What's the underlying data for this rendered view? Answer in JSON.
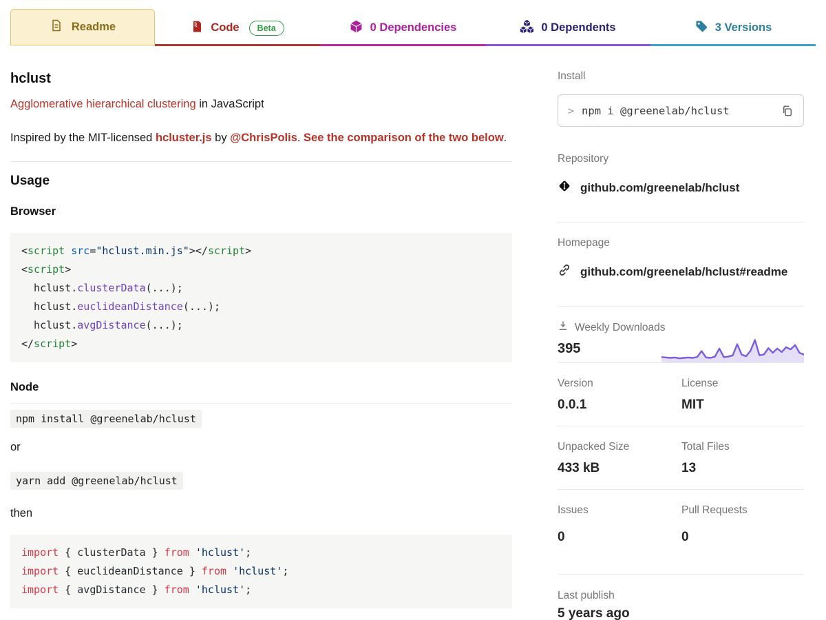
{
  "header": {
    "tabs": [
      {
        "label": "Readme"
      },
      {
        "label": "Code",
        "badge": "Beta"
      },
      {
        "label": "0 Dependencies"
      },
      {
        "label": "0 Dependents"
      },
      {
        "label": "3 Versions"
      }
    ],
    "underline_colors": [
      "#a93a33",
      "#bf2a9f",
      "#8a55d6",
      "#3fa3c9"
    ]
  },
  "readme": {
    "title": "hclust",
    "subtitle": [
      {
        "text": "Agglomerative hierarchical clustering",
        "style": "link"
      },
      {
        "text": " in JavaScript",
        "style": "plain"
      }
    ],
    "intro": [
      {
        "text": "Inspired by the MIT-licensed ",
        "style": "plain"
      },
      {
        "text": "hcluster.js",
        "style": "link-bold"
      },
      {
        "text": " by ",
        "style": "plain"
      },
      {
        "text": "@ChrisPolis",
        "style": "link-bold"
      },
      {
        "text": ". ",
        "style": "plain"
      },
      {
        "text": "See the comparison of the two below",
        "style": "link-bold"
      },
      {
        "text": ".",
        "style": "plain"
      }
    ],
    "usage_heading": "Usage",
    "browser_heading": "Browser",
    "node_heading": "Node",
    "or_text": "or",
    "then_text": "then",
    "npm_install_code": "npm install @greenelab/hclust",
    "yarn_add_code": "yarn add @greenelab/hclust",
    "browser_code": [
      [
        [
          "p",
          "<"
        ],
        [
          "t",
          "script"
        ],
        [
          "p",
          " "
        ],
        [
          "a",
          "src"
        ],
        [
          "p",
          "="
        ],
        [
          "s",
          "\"hclust.min.js\""
        ],
        [
          "p",
          "></"
        ],
        [
          "t",
          "script"
        ],
        [
          "p",
          ">"
        ]
      ],
      [
        [
          "p",
          "<"
        ],
        [
          "t",
          "script"
        ],
        [
          "p",
          ">"
        ]
      ],
      [
        [
          "p",
          "  hclust."
        ],
        [
          "f",
          "clusterData"
        ],
        [
          "p",
          "(...);"
        ]
      ],
      [
        [
          "p",
          "  hclust."
        ],
        [
          "f",
          "euclideanDistance"
        ],
        [
          "p",
          "(...);"
        ]
      ],
      [
        [
          "p",
          "  hclust."
        ],
        [
          "f",
          "avgDistance"
        ],
        [
          "p",
          "(...);"
        ]
      ],
      [
        [
          "p",
          "</"
        ],
        [
          "t",
          "script"
        ],
        [
          "p",
          ">"
        ]
      ]
    ],
    "import_code": [
      [
        [
          "k",
          "import"
        ],
        [
          "p",
          " { clusterData } "
        ],
        [
          "k",
          "from"
        ],
        [
          "p",
          " "
        ],
        [
          "s",
          "'hclust'"
        ],
        [
          "p",
          ";"
        ]
      ],
      [
        [
          "k",
          "import"
        ],
        [
          "p",
          " { euclideanDistance } "
        ],
        [
          "k",
          "from"
        ],
        [
          "p",
          " "
        ],
        [
          "s",
          "'hclust'"
        ],
        [
          "p",
          ";"
        ]
      ],
      [
        [
          "k",
          "import"
        ],
        [
          "p",
          " { avgDistance } "
        ],
        [
          "k",
          "from"
        ],
        [
          "p",
          " "
        ],
        [
          "s",
          "'hclust'"
        ],
        [
          "p",
          ";"
        ]
      ]
    ]
  },
  "sidebar": {
    "install_label": "Install",
    "install_prompt": ">",
    "install_command": "npm i @greenelab/hclust",
    "repository_label": "Repository",
    "repository_link": "github.com/greenelab/hclust",
    "homepage_label": "Homepage",
    "homepage_link": "github.com/greenelab/hclust#readme",
    "downloads_label": "Weekly Downloads",
    "downloads_value": "395",
    "stats": [
      {
        "label": "Version",
        "value": "0.0.1"
      },
      {
        "label": "License",
        "value": "MIT"
      },
      {
        "label": "Unpacked Size",
        "value": "433 kB"
      },
      {
        "label": "Total Files",
        "value": "13"
      },
      {
        "label": "Issues",
        "value": "0"
      },
      {
        "label": "Pull Requests",
        "value": "0"
      }
    ],
    "last_publish_label": "Last publish",
    "last_publish_value": "5 years ago"
  },
  "chart_data": {
    "type": "area",
    "title": "Weekly Downloads sparkline",
    "current_value": 395,
    "note": "unlabeled sparkline; values are relative estimates read from the line shape",
    "values": [
      10,
      9,
      8,
      9,
      7,
      8,
      9,
      8,
      10,
      24,
      9,
      8,
      11,
      30,
      10,
      11,
      14,
      40,
      16,
      12,
      25,
      50,
      14,
      16,
      31,
      20,
      30,
      22,
      33,
      28,
      38,
      20,
      16
    ],
    "line_color": "#7b5be0",
    "fill_color": "#e4def7"
  }
}
